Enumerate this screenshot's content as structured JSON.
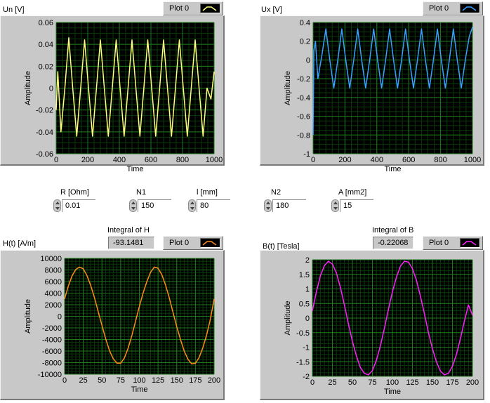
{
  "graphs": [
    {
      "id": "un",
      "title": "Un [V]",
      "legend": "Plot 0",
      "color": "#ffff80",
      "xlabel": "Time",
      "ylabel": "Amplitude",
      "xticks": [
        "0",
        "200",
        "400",
        "600",
        "800",
        "1000"
      ],
      "yticks": [
        "0.06",
        "0.04",
        "0.02",
        "0",
        "-0.02",
        "-0.04",
        "-0.06"
      ]
    },
    {
      "id": "ux",
      "title": "Ux [V]",
      "legend": "Plot 0",
      "color": "#3aa0ff",
      "xlabel": "Time",
      "ylabel": "Amplitude",
      "xticks": [
        "0",
        "200",
        "400",
        "600",
        "800",
        "1000"
      ],
      "yticks": [
        "0.4",
        "0.2",
        "0",
        "-0.2",
        "-0.4",
        "-0.6",
        "-0.8",
        "-1"
      ]
    },
    {
      "id": "h",
      "title": "H(t) [A/m]",
      "legend": "Plot 0",
      "color": "#ff8c1a",
      "xlabel": "Time",
      "ylabel": "Amplitude",
      "xticks": [
        "0",
        "25",
        "50",
        "75",
        "100",
        "125",
        "150",
        "175",
        "200"
      ],
      "yticks": [
        "10000",
        "8000",
        "6000",
        "4000",
        "2000",
        "0",
        "-2000",
        "-4000",
        "-6000",
        "-8000",
        "-10000"
      ]
    },
    {
      "id": "b",
      "title": "B(t) [Tesla]",
      "legend": "Plot 0",
      "color": "#ff20ff",
      "xlabel": "Time",
      "ylabel": "Amplitude",
      "xticks": [
        "0",
        "25",
        "50",
        "75",
        "100",
        "125",
        "150",
        "175",
        "200"
      ],
      "yticks": [
        "2",
        "1.5",
        "1",
        "0.5",
        "0",
        "-0.5",
        "-1",
        "-1.5",
        "-2"
      ]
    }
  ],
  "controls": {
    "r": {
      "label": "R [Ohm]",
      "value": "0.01"
    },
    "n1": {
      "label": "N1",
      "value": "150"
    },
    "l": {
      "label": "l [mm]",
      "value": "80"
    },
    "n2": {
      "label": "N2",
      "value": "180"
    },
    "a": {
      "label": "A [mm2]",
      "value": "15"
    }
  },
  "indicators": {
    "integral_h": {
      "label": "Integral of H",
      "value": "-93.1481"
    },
    "integral_b": {
      "label": "Integral of B",
      "value": "-0.22068"
    }
  },
  "chart_data": [
    {
      "type": "line",
      "title": "Un [V]",
      "xlabel": "Time",
      "ylabel": "Amplitude",
      "xlim": [
        0,
        1000
      ],
      "ylim": [
        -0.06,
        0.06
      ],
      "grid": true,
      "legend": "top-right",
      "series": [
        {
          "name": "Plot 0",
          "color": "#ffff80",
          "x": [
            0,
            10,
            30,
            55,
            80,
            105,
            130,
            155,
            180,
            205,
            230,
            255,
            280,
            305,
            330,
            355,
            380,
            405,
            430,
            455,
            480,
            505,
            530,
            555,
            580,
            605,
            630,
            655,
            680,
            705,
            730,
            755,
            780,
            805,
            830,
            855,
            880,
            905,
            930,
            955,
            980,
            1000
          ],
          "y": [
            -0.02,
            0.015,
            -0.04,
            0,
            0.046,
            0,
            -0.044,
            0,
            0.044,
            0,
            -0.044,
            0,
            0.044,
            0,
            -0.044,
            0,
            0.044,
            0,
            -0.044,
            0,
            0.044,
            0,
            -0.044,
            0,
            0.044,
            0,
            -0.044,
            0,
            0.044,
            0,
            -0.044,
            0,
            0.044,
            0,
            -0.044,
            0,
            0.044,
            0,
            -0.044,
            0,
            -0.01,
            0.015
          ]
        }
      ]
    },
    {
      "type": "line",
      "title": "Ux [V]",
      "xlabel": "Time",
      "ylabel": "Amplitude",
      "xlim": [
        0,
        1000
      ],
      "ylim": [
        -1,
        0.4
      ],
      "grid": true,
      "legend": "top-right",
      "series": [
        {
          "name": "Plot 0",
          "color": "#3aa0ff",
          "x": [
            0,
            5,
            15,
            30,
            55,
            80,
            105,
            130,
            155,
            180,
            205,
            230,
            255,
            280,
            305,
            330,
            355,
            380,
            405,
            430,
            455,
            480,
            505,
            530,
            555,
            580,
            605,
            630,
            655,
            680,
            705,
            730,
            755,
            780,
            805,
            830,
            855,
            880,
            905,
            930,
            955,
            980,
            1000
          ],
          "y": [
            -0.8,
            0.1,
            0.2,
            -0.2,
            0.05,
            0.33,
            0.0,
            -0.3,
            0.0,
            0.33,
            0.0,
            -0.3,
            0.0,
            0.33,
            0.0,
            -0.3,
            0.0,
            0.33,
            0.0,
            -0.3,
            0.0,
            0.33,
            0.0,
            -0.3,
            0.0,
            0.33,
            0.0,
            -0.3,
            0.0,
            0.33,
            0.0,
            -0.3,
            0.0,
            0.33,
            0.0,
            -0.3,
            0.0,
            0.33,
            0.0,
            -0.3,
            0.0,
            0.25,
            0.35
          ]
        }
      ]
    },
    {
      "type": "line",
      "title": "H(t) [A/m]",
      "xlabel": "Time",
      "ylabel": "Amplitude",
      "xlim": [
        0,
        200
      ],
      "ylim": [
        -10000,
        10000
      ],
      "grid": true,
      "legend": "top-right",
      "series": [
        {
          "name": "Plot 0",
          "color": "#ff8c1a",
          "x": [
            0,
            5,
            10,
            15,
            20,
            25,
            30,
            35,
            40,
            45,
            50,
            55,
            60,
            65,
            70,
            75,
            80,
            85,
            90,
            95,
            100,
            105,
            110,
            115,
            120,
            125,
            130,
            135,
            140,
            145,
            150,
            155,
            160,
            165,
            170,
            175,
            180,
            185,
            190,
            195,
            200
          ],
          "y": [
            3000,
            5200,
            7000,
            8100,
            8500,
            8200,
            7000,
            5300,
            3200,
            800,
            -1600,
            -3900,
            -5900,
            -7300,
            -8100,
            -8100,
            -7200,
            -5500,
            -3300,
            -800,
            1700,
            4000,
            6000,
            7600,
            8500,
            8300,
            7200,
            5400,
            3200,
            700,
            -1800,
            -4000,
            -6000,
            -7400,
            -8200,
            -8100,
            -7100,
            -5400,
            -3200,
            -500,
            3000
          ]
        }
      ]
    },
    {
      "type": "line",
      "title": "B(t) [Tesla]",
      "xlabel": "Time",
      "ylabel": "Amplitude",
      "xlim": [
        0,
        200
      ],
      "ylim": [
        -2,
        2
      ],
      "grid": true,
      "legend": "top-right",
      "series": [
        {
          "name": "Plot 0",
          "color": "#ff20ff",
          "x": [
            0,
            5,
            10,
            15,
            20,
            25,
            30,
            35,
            40,
            45,
            50,
            55,
            60,
            65,
            70,
            75,
            80,
            85,
            90,
            95,
            100,
            105,
            110,
            115,
            120,
            125,
            130,
            135,
            140,
            145,
            150,
            155,
            160,
            165,
            170,
            175,
            180,
            185,
            190,
            195,
            200
          ],
          "y": [
            0.25,
            0.9,
            1.45,
            1.8,
            1.95,
            1.85,
            1.55,
            1.05,
            0.45,
            -0.2,
            -0.8,
            -1.3,
            -1.7,
            -1.9,
            -1.95,
            -1.8,
            -1.45,
            -0.95,
            -0.35,
            0.3,
            0.9,
            1.4,
            1.78,
            1.95,
            1.92,
            1.7,
            1.3,
            0.75,
            0.15,
            -0.5,
            -1.05,
            -1.5,
            -1.82,
            -1.95,
            -1.9,
            -1.65,
            -1.25,
            -0.7,
            -0.1,
            0.45,
            0.1
          ]
        }
      ]
    }
  ]
}
